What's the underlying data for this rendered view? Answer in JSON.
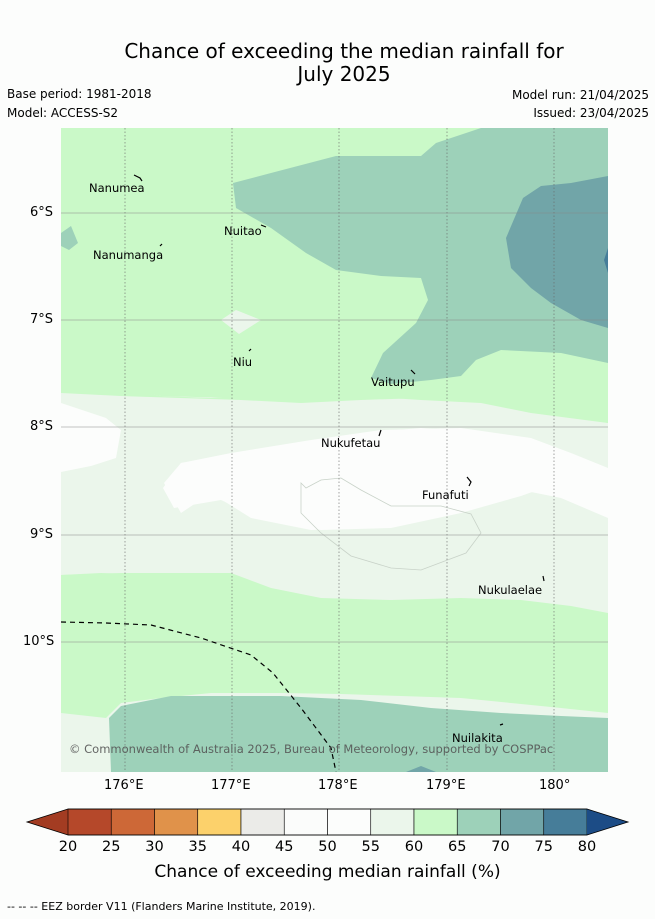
{
  "title_line1": "Chance of exceeding the median rainfall for",
  "title_line2": "July 2025",
  "base_period": "Base period: 1981-2018",
  "model": "Model: ACCESS-S2",
  "model_run": "Model run: 21/04/2025",
  "issued": "Issued: 23/04/2025",
  "copyright": "© Commonwealth of Australia 2025, Bureau of Meteorology, supported by COSPPac",
  "lat_ticks": [
    "6°S",
    "7°S",
    "8°S",
    "9°S",
    "10°S"
  ],
  "lon_ticks": [
    "176°E",
    "177°E",
    "178°E",
    "179°E",
    "180°"
  ],
  "places": [
    "Nanumea",
    "Nuitao",
    "Nanumanga",
    "Niu",
    "Vaitupu",
    "Nukufetau",
    "Funafuti",
    "Nukulaelae",
    "Nuilakita"
  ],
  "colorbar": {
    "title": "Chance of exceeding median rainfall (%)",
    "labels": [
      "20",
      "25",
      "30",
      "35",
      "40",
      "45",
      "50",
      "55",
      "60",
      "65",
      "70",
      "75",
      "80"
    ],
    "colors": [
      "#b5482a",
      "#cd6837",
      "#e0924a",
      "#fcd16b",
      "#ebebe8",
      "#fbfcfb",
      "#fcfdfc",
      "#ebf6eb",
      "#caf9c8",
      "#9dd1b9",
      "#71a5a8",
      "#467d99"
    ],
    "extend_low": "#a33c22",
    "extend_high": "#1c4c86"
  },
  "eez_legend": "-- -- -- EEZ border V11 (Flanders Marine Institute, 2019)."
}
